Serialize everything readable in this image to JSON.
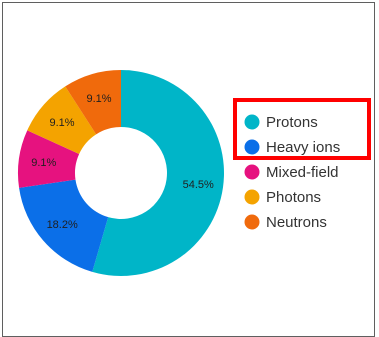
{
  "chart_data": {
    "type": "pie",
    "subtype": "donut",
    "slices": [
      {
        "label": "Protons",
        "value": 54.5,
        "value_label": "54.5%",
        "color": "#00b5c8"
      },
      {
        "label": "Heavy ions",
        "value": 18.2,
        "value_label": "18.2%",
        "color": "#0b6fe8"
      },
      {
        "label": "Mixed-field",
        "value": 9.1,
        "value_label": "9.1%",
        "color": "#e6127f"
      },
      {
        "label": "Photons",
        "value": 9.1,
        "value_label": "9.1%",
        "color": "#f4a300"
      },
      {
        "label": "Neutrons",
        "value": 9.1,
        "value_label": "9.1%",
        "color": "#f06a0c"
      }
    ],
    "start": "top",
    "direction": "clockwise",
    "legend_position": "right",
    "highlighted_legend_entries": [
      "Protons",
      "Heavy ions"
    ],
    "highlight_color": "#ff0000"
  }
}
